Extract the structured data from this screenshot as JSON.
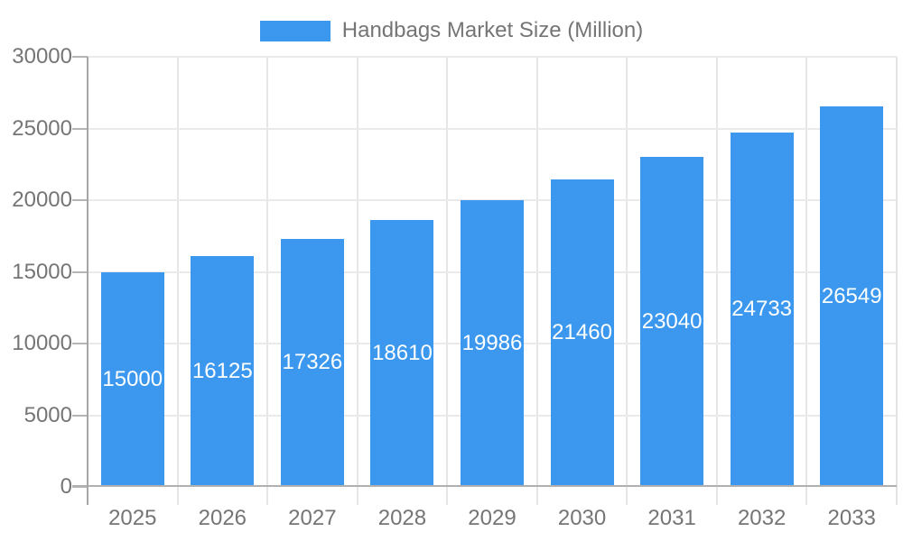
{
  "chart_data": {
    "type": "bar",
    "title": "Handbags Market Size (Million)",
    "legend": {
      "label": "Handbags Market Size (Million)",
      "position": "top"
    },
    "categories": [
      "2025",
      "2026",
      "2027",
      "2028",
      "2029",
      "2030",
      "2031",
      "2032",
      "2033"
    ],
    "series": [
      {
        "name": "Handbags Market Size (Million)",
        "values": [
          15000,
          16125,
          17326,
          18610,
          19986,
          21460,
          23040,
          24733,
          26549
        ]
      }
    ],
    "value_labels_shown": true,
    "xlabel": "",
    "ylabel": "",
    "ylim": [
      0,
      30000
    ],
    "ytick_step": 5000,
    "yticks": [
      0,
      5000,
      10000,
      15000,
      20000,
      25000,
      30000
    ],
    "grid": true,
    "colors": {
      "bar": "#3B98EE",
      "value_label": "#FFFFFF",
      "axis_text": "#757575",
      "gridline": "#EAEAEA",
      "vertical_gridline": "#E6E6E6",
      "axis_line": "#A6A6A6",
      "baseline": "#B0B0B0",
      "tick": "#B5B5B5",
      "right_border": "#E3E3E3",
      "background": "#FFFFFF"
    }
  }
}
